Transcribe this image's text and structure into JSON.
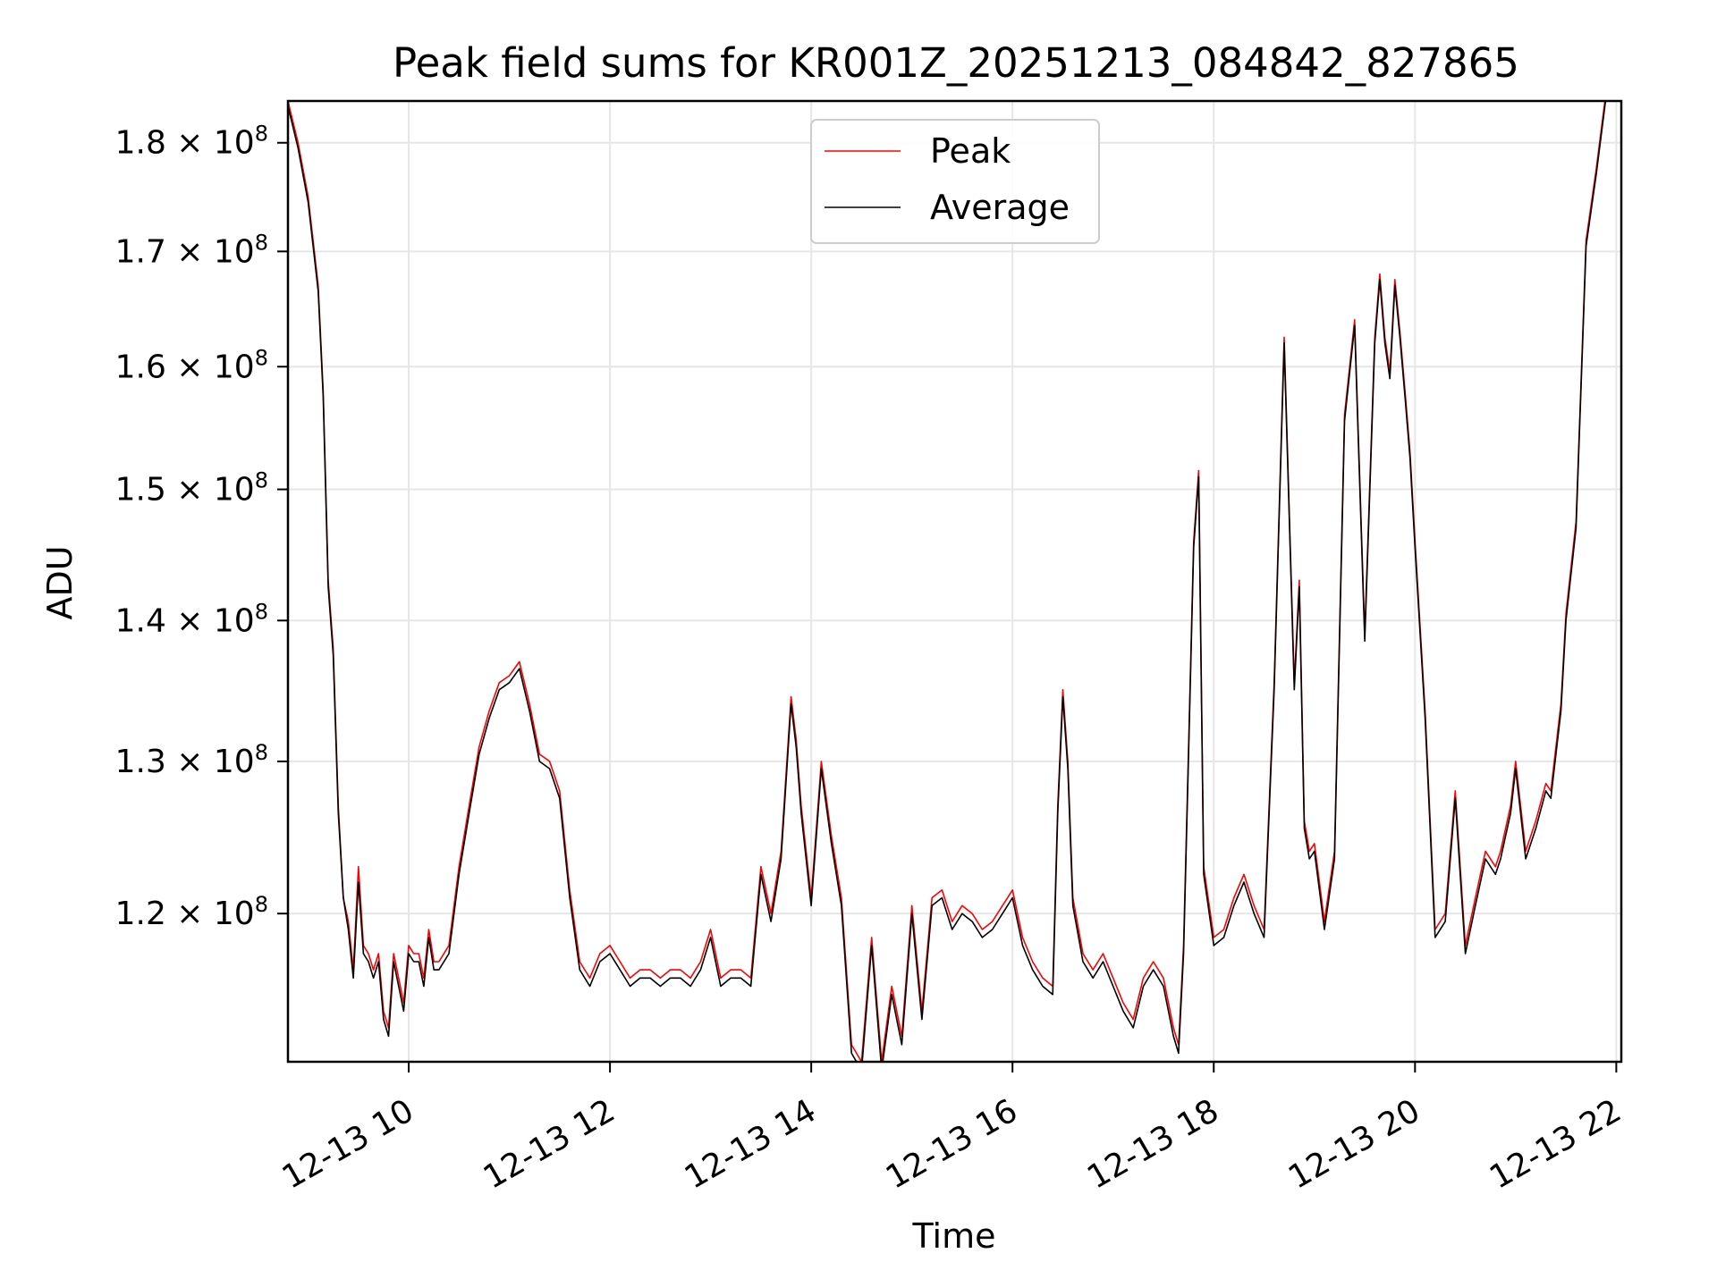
{
  "chart_data": {
    "type": "line",
    "title": "Peak field sums for KR001Z_20251213_084842_827865",
    "xlabel": "Time",
    "ylabel": "ADU",
    "yscale": "log",
    "grid": true,
    "legend_position": "upper-center",
    "xlim": [
      8.8,
      22.05
    ],
    "ylim": [
      111000000,
      184000000
    ],
    "x_ticks": [
      {
        "value": 10,
        "label": "12-13 10"
      },
      {
        "value": 12,
        "label": "12-13 12"
      },
      {
        "value": 14,
        "label": "12-13 14"
      },
      {
        "value": 16,
        "label": "12-13 16"
      },
      {
        "value": 18,
        "label": "12-13 18"
      },
      {
        "value": 20,
        "label": "12-13 20"
      },
      {
        "value": 22,
        "label": "12-13 22"
      }
    ],
    "y_ticks": [
      {
        "value": 120000000,
        "mantissa": "1.2",
        "base": "10",
        "exp": "8"
      },
      {
        "value": 130000000,
        "mantissa": "1.3",
        "base": "10",
        "exp": "8"
      },
      {
        "value": 140000000,
        "mantissa": "1.4",
        "base": "10",
        "exp": "8"
      },
      {
        "value": 150000000,
        "mantissa": "1.5",
        "base": "10",
        "exp": "8"
      },
      {
        "value": 160000000,
        "mantissa": "1.6",
        "base": "10",
        "exp": "8"
      },
      {
        "value": 170000000,
        "mantissa": "1.7",
        "base": "10",
        "exp": "8"
      },
      {
        "value": 180000000,
        "mantissa": "1.8",
        "base": "10",
        "exp": "8"
      }
    ],
    "times_of_day_hours": [
      8.8,
      8.9,
      9.0,
      9.05,
      9.1,
      9.15,
      9.2,
      9.25,
      9.3,
      9.35,
      9.4,
      9.45,
      9.5,
      9.55,
      9.6,
      9.65,
      9.7,
      9.75,
      9.8,
      9.85,
      9.9,
      9.95,
      10.0,
      10.05,
      10.1,
      10.15,
      10.2,
      10.25,
      10.3,
      10.4,
      10.5,
      10.6,
      10.7,
      10.8,
      10.9,
      11.0,
      11.1,
      11.2,
      11.3,
      11.4,
      11.5,
      11.6,
      11.7,
      11.8,
      11.9,
      12.0,
      12.1,
      12.2,
      12.3,
      12.4,
      12.5,
      12.6,
      12.7,
      12.8,
      12.9,
      13.0,
      13.1,
      13.2,
      13.3,
      13.4,
      13.5,
      13.6,
      13.7,
      13.8,
      13.85,
      13.9,
      14.0,
      14.1,
      14.2,
      14.3,
      14.4,
      14.5,
      14.6,
      14.7,
      14.8,
      14.9,
      15.0,
      15.1,
      15.2,
      15.3,
      15.4,
      15.5,
      15.6,
      15.7,
      15.8,
      15.9,
      16.0,
      16.1,
      16.2,
      16.3,
      16.4,
      16.45,
      16.5,
      16.55,
      16.6,
      16.7,
      16.8,
      16.9,
      17.0,
      17.1,
      17.2,
      17.3,
      17.4,
      17.5,
      17.6,
      17.65,
      17.7,
      17.75,
      17.8,
      17.85,
      17.9,
      18.0,
      18.1,
      18.2,
      18.3,
      18.4,
      18.5,
      18.6,
      18.7,
      18.8,
      18.85,
      18.9,
      18.95,
      19.0,
      19.05,
      19.1,
      19.2,
      19.3,
      19.4,
      19.5,
      19.6,
      19.65,
      19.7,
      19.75,
      19.8,
      19.85,
      19.9,
      19.95,
      20.0,
      20.1,
      20.2,
      20.3,
      20.4,
      20.5,
      20.6,
      20.7,
      20.8,
      20.85,
      20.9,
      20.95,
      21.0,
      21.1,
      21.2,
      21.3,
      21.35,
      21.4,
      21.45,
      21.5,
      21.6,
      21.7,
      21.8,
      21.9,
      22.0,
      22.05
    ],
    "series": [
      {
        "name": "Peak",
        "color": "#ff0000",
        "values": [
          184000000,
          180000000,
          175000000,
          171000000,
          167000000,
          158000000,
          143000000,
          138000000,
          127000000,
          121000000,
          119500000,
          116500000,
          123000000,
          118000000,
          117500000,
          116500000,
          117500000,
          114000000,
          113000000,
          117500000,
          116000000,
          114500000,
          118000000,
          117500000,
          117500000,
          116000000,
          119000000,
          117000000,
          117000000,
          118000000,
          123000000,
          127000000,
          131000000,
          133500000,
          135500000,
          136000000,
          137000000,
          134000000,
          130500000,
          130000000,
          128000000,
          121500000,
          117000000,
          116000000,
          117500000,
          118000000,
          117000000,
          116000000,
          116500000,
          116500000,
          116000000,
          116500000,
          116500000,
          116000000,
          117000000,
          119000000,
          116000000,
          116500000,
          116500000,
          116000000,
          123000000,
          120000000,
          124000000,
          134500000,
          131500000,
          127000000,
          121000000,
          130000000,
          125000000,
          121000000,
          112000000,
          111000000,
          118500000,
          111000000,
          115500000,
          112500000,
          120500000,
          114000000,
          121000000,
          121500000,
          119500000,
          120500000,
          120000000,
          119000000,
          119500000,
          120500000,
          121500000,
          118500000,
          117000000,
          116000000,
          115500000,
          127000000,
          135000000,
          130000000,
          121000000,
          117500000,
          116500000,
          117500000,
          116000000,
          114500000,
          113500000,
          116000000,
          117000000,
          116000000,
          113000000,
          112000000,
          118000000,
          131000000,
          146000000,
          151500000,
          123000000,
          118500000,
          119000000,
          121000000,
          122500000,
          120500000,
          119000000,
          135500000,
          162500000,
          135500000,
          143000000,
          126000000,
          124000000,
          124500000,
          122000000,
          119500000,
          124000000,
          156000000,
          164000000,
          139000000,
          162500000,
          168000000,
          162500000,
          159500000,
          167500000,
          163000000,
          158000000,
          153000000,
          146000000,
          133500000,
          119000000,
          120000000,
          128000000,
          118000000,
          121000000,
          124000000,
          123000000,
          124000000,
          125500000,
          127000000,
          130000000,
          124000000,
          126000000,
          128500000,
          128000000,
          131000000,
          134000000,
          140500000,
          147500000,
          171000000,
          177500000,
          185000000
        ]
      },
      {
        "name": "Average",
        "color": "#000000",
        "values": [
          183500000,
          179500000,
          174500000,
          170500000,
          166500000,
          157500000,
          142500000,
          137500000,
          126500000,
          121000000,
          119000000,
          116000000,
          122000000,
          117500000,
          117000000,
          116000000,
          117000000,
          113500000,
          112500000,
          117000000,
          115500000,
          114000000,
          117500000,
          117000000,
          117000000,
          115500000,
          118500000,
          116500000,
          116500000,
          117500000,
          122500000,
          126500000,
          130500000,
          133000000,
          135000000,
          135500000,
          136500000,
          133500000,
          130000000,
          129500000,
          127500000,
          121000000,
          116500000,
          115500000,
          117000000,
          117500000,
          116500000,
          115500000,
          116000000,
          116000000,
          115500000,
          116000000,
          116000000,
          115500000,
          116500000,
          118500000,
          115500000,
          116000000,
          116000000,
          115500000,
          122500000,
          119500000,
          123500000,
          134000000,
          131000000,
          126500000,
          120500000,
          129500000,
          124500000,
          120500000,
          111500000,
          110500000,
          118000000,
          110500000,
          115000000,
          112000000,
          120000000,
          113500000,
          120500000,
          121000000,
          119000000,
          120000000,
          119500000,
          118500000,
          119000000,
          120000000,
          121000000,
          118000000,
          116500000,
          115500000,
          115000000,
          126500000,
          134500000,
          129500000,
          120500000,
          117000000,
          116000000,
          117000000,
          115500000,
          114000000,
          113000000,
          115500000,
          116500000,
          115500000,
          112500000,
          111500000,
          117500000,
          130500000,
          145500000,
          151000000,
          122500000,
          118000000,
          118500000,
          120500000,
          122000000,
          120000000,
          118500000,
          135000000,
          162000000,
          135000000,
          142500000,
          125500000,
          123500000,
          124000000,
          121500000,
          119000000,
          123500000,
          155500000,
          163500000,
          138500000,
          162000000,
          167500000,
          162000000,
          159000000,
          167000000,
          162500000,
          157500000,
          152500000,
          145500000,
          133000000,
          118500000,
          119500000,
          127500000,
          117500000,
          120500000,
          123500000,
          122500000,
          123500000,
          125000000,
          126500000,
          129500000,
          123500000,
          125500000,
          128000000,
          127500000,
          130500000,
          133500000,
          140000000,
          147000000,
          170500000,
          177000000,
          184500000
        ]
      }
    ]
  }
}
